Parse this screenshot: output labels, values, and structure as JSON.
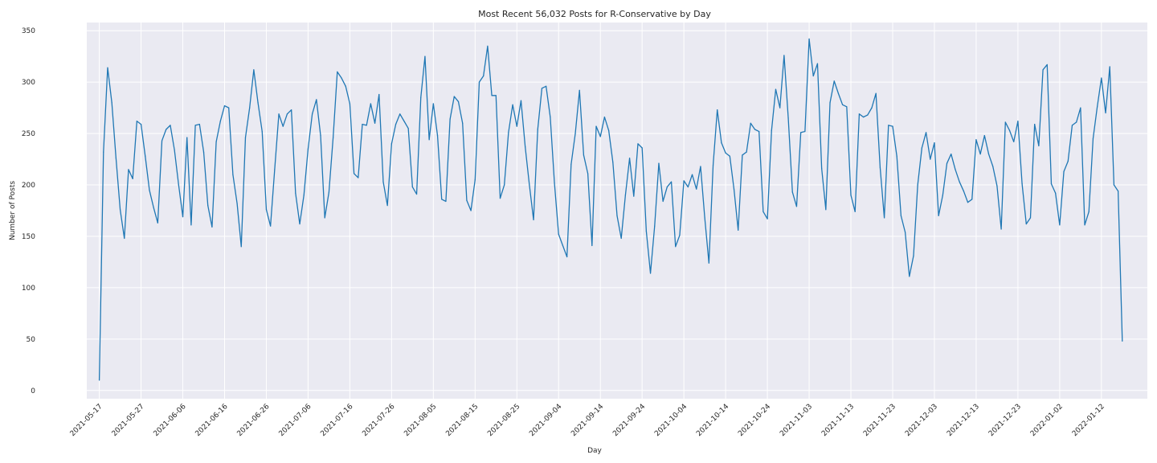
{
  "chart_data": {
    "type": "line",
    "title": "Most Recent 56,032 Posts for R-Conservative by Day",
    "xlabel": "Day",
    "ylabel": "Number of Posts",
    "x_start": "2021-05-17",
    "x_end": "2022-01-19",
    "xlim": [
      "2021-05-14",
      "2022-01-23"
    ],
    "ylim": [
      -8,
      358
    ],
    "xticks": [
      "2021-05-17",
      "2021-05-27",
      "2021-06-06",
      "2021-06-16",
      "2021-06-26",
      "2021-07-06",
      "2021-07-16",
      "2021-07-26",
      "2021-08-05",
      "2021-08-15",
      "2021-08-25",
      "2021-09-04",
      "2021-09-14",
      "2021-09-24",
      "2021-10-04",
      "2021-10-14",
      "2021-10-24",
      "2021-11-03",
      "2021-11-13",
      "2021-11-23",
      "2021-12-03",
      "2021-12-13",
      "2021-12-23",
      "2022-01-02",
      "2022-01-12"
    ],
    "yticks": [
      "0",
      "50",
      "100",
      "150",
      "200",
      "250",
      "300",
      "350"
    ],
    "grid": true,
    "background": "#eaeaf2",
    "line_color": "#1f77b4",
    "series": [
      {
        "name": "",
        "values": [
          10,
          232,
          314,
          280,
          226,
          176,
          148,
          215,
          206,
          262,
          259,
          228,
          195,
          178,
          163,
          243,
          254,
          258,
          234,
          200,
          169,
          246,
          161,
          258,
          259,
          232,
          180,
          159,
          242,
          262,
          277,
          275,
          210,
          182,
          140,
          246,
          275,
          312,
          280,
          252,
          176,
          160,
          215,
          269,
          257,
          269,
          273,
          192,
          162,
          190,
          235,
          269,
          283,
          248,
          168,
          193,
          246,
          310,
          304,
          296,
          279,
          211,
          207,
          259,
          258,
          279,
          260,
          288,
          203,
          180,
          240,
          259,
          269,
          262,
          255,
          198,
          191,
          285,
          325,
          244,
          279,
          248,
          186,
          184,
          264,
          286,
          281,
          260,
          185,
          175,
          205,
          300,
          306,
          335,
          287,
          287,
          187,
          200,
          251,
          278,
          257,
          282,
          237,
          200,
          166,
          254,
          294,
          296,
          266,
          202,
          152,
          141,
          130,
          220,
          250,
          292,
          229,
          211,
          141,
          257,
          247,
          266,
          253,
          222,
          170,
          148,
          190,
          226,
          189,
          240,
          236,
          155,
          114,
          160,
          221,
          184,
          198,
          203,
          140,
          151,
          204,
          198,
          210,
          196,
          218,
          168,
          124,
          219,
          273,
          241,
          231,
          228,
          196,
          156,
          229,
          232,
          260,
          254,
          252,
          174,
          167,
          253,
          293,
          275,
          326,
          265,
          193,
          179,
          251,
          252,
          342,
          306,
          318,
          216,
          176,
          280,
          301,
          289,
          278,
          276,
          190,
          174,
          269,
          266,
          268,
          275,
          289,
          217,
          168,
          258,
          257,
          228,
          170,
          154,
          111,
          131,
          200,
          236,
          251,
          225,
          241,
          170,
          190,
          221,
          230,
          215,
          203,
          194,
          183,
          186,
          244,
          230,
          248,
          230,
          218,
          199,
          157,
          261,
          253,
          242,
          262,
          201,
          162,
          168,
          259,
          238,
          312,
          317,
          201,
          192,
          161,
          213,
          223,
          258,
          261,
          275,
          161,
          174,
          245,
          276,
          304,
          270,
          315,
          200,
          194,
          48
        ]
      }
    ]
  }
}
